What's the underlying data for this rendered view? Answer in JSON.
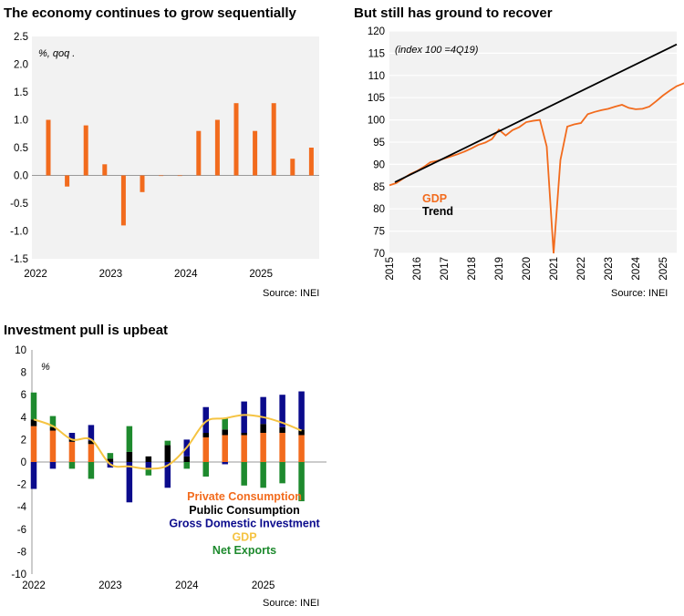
{
  "chart_data": [
    {
      "id": "qoq",
      "type": "bar",
      "title": "The economy continues to grow sequentially",
      "unit_note": "%, qoq .",
      "source": "Source: INEI",
      "color": "#F26B1D",
      "ylim": [
        -1.5,
        2.5
      ],
      "yticks": [
        "2.5",
        "2.0",
        "1.5",
        "1.0",
        "0.5",
        "0.0",
        "-0.5",
        "-1.0",
        "-1.5"
      ],
      "xlabels": [
        "2022",
        "2023",
        "2024",
        "2025"
      ],
      "categories": [
        "1Q22",
        "2Q22",
        "3Q22",
        "4Q22",
        "1Q23",
        "2Q23",
        "3Q23",
        "4Q23",
        "1Q24",
        "2Q24",
        "3Q24",
        "4Q24",
        "1Q25",
        "2Q25",
        "3Q25"
      ],
      "values": [
        1.0,
        -0.2,
        0.9,
        0.2,
        -0.9,
        -0.3,
        0.0,
        0.0,
        0.8,
        1.0,
        1.3,
        0.8,
        1.3,
        0.3,
        0.5
      ],
      "grid": false,
      "background": "#F2F2F2"
    },
    {
      "id": "index",
      "type": "line",
      "title": "But still has ground to recover",
      "unit_note": "(index 100 =4Q19)",
      "source": "Source: INEI",
      "ylim": [
        70,
        120
      ],
      "yticks": [
        "120",
        "115",
        "110",
        "105",
        "100",
        "95",
        "90",
        "85",
        "80",
        "75",
        "70"
      ],
      "xlabels": [
        "2015",
        "2016",
        "2017",
        "2018",
        "2019",
        "2020",
        "2021",
        "2022",
        "2023",
        "2024",
        "2025"
      ],
      "x_start": 2015.0,
      "x_end": 2025.5,
      "grid": true,
      "background": "#F2F2F2",
      "legend_position": "lower-left",
      "series": [
        {
          "name": "GDP",
          "color": "#F26B1D",
          "x_step": 0.25,
          "values": [
            85.3,
            85.8,
            86.8,
            87.8,
            88.5,
            89.4,
            90.5,
            90.8,
            91.3,
            91.8,
            92.3,
            92.9,
            93.6,
            94.4,
            94.9,
            95.7,
            97.8,
            96.5,
            97.7,
            98.4,
            99.5,
            99.8,
            100.0,
            94.0,
            70.0,
            91.0,
            98.5,
            99.0,
            99.3,
            101.3,
            101.8,
            102.2,
            102.5,
            103.0,
            103.4,
            102.7,
            102.4,
            102.5,
            103.0,
            104.2,
            105.5,
            106.6,
            107.6,
            108.2,
            108.6
          ]
        },
        {
          "name": "Trend",
          "color": "#000000",
          "x": [
            2015.2,
            2025.5
          ],
          "values": [
            86.0,
            117.0
          ]
        }
      ]
    },
    {
      "id": "contrib",
      "type": "bar",
      "stacked": true,
      "title": "Investment pull is upbeat",
      "unit_note": "%",
      "source": "Source: INEI",
      "ylim": [
        -10,
        10
      ],
      "yticks": [
        "10",
        "8",
        "6",
        "4",
        "2",
        "0",
        "-2",
        "-4",
        "-6",
        "-8",
        "-10"
      ],
      "xlabels": [
        "2022",
        "2023",
        "2024",
        "2025"
      ],
      "categories": [
        "1Q22",
        "2Q22",
        "3Q22",
        "4Q22",
        "1Q23",
        "2Q23",
        "3Q23",
        "4Q23",
        "1Q24",
        "2Q24",
        "3Q24",
        "4Q24",
        "1Q25",
        "2Q25",
        "3Q25"
      ],
      "legend_position": "bottom-right",
      "series": [
        {
          "name": "Private Consumption",
          "color": "#F26B1D",
          "values": [
            3.2,
            2.8,
            1.8,
            1.6,
            0.0,
            0.0,
            0.0,
            0.0,
            0.0,
            2.2,
            2.4,
            2.4,
            2.6,
            2.6,
            2.4
          ]
        },
        {
          "name": "Public Consumption",
          "color": "#000000",
          "values": [
            0.6,
            0.3,
            0.3,
            0.3,
            0.3,
            0.9,
            0.5,
            1.5,
            0.5,
            0.4,
            0.5,
            0.2,
            0.8,
            0.5,
            0.5
          ]
        },
        {
          "name": "Gross Domestic Investment",
          "color": "#0B0B8C",
          "values": [
            -2.4,
            -0.6,
            0.5,
            1.4,
            -0.5,
            -3.6,
            -0.6,
            -2.3,
            1.5,
            2.3,
            -0.2,
            2.8,
            2.4,
            2.9,
            3.4
          ]
        },
        {
          "name": "GDP",
          "color": "#F5C342",
          "values": [
            3.8,
            3.2,
            2.0,
            2.0,
            -0.2,
            -0.4,
            -0.6,
            -0.3,
            1.3,
            3.6,
            3.9,
            4.2,
            4.0,
            3.5,
            2.8
          ]
        },
        {
          "name": "Net Exports",
          "color": "#1E8A2E",
          "values": [
            2.4,
            1.0,
            -0.6,
            -1.5,
            0.5,
            2.3,
            -0.6,
            0.4,
            -0.6,
            -1.3,
            1.0,
            -2.1,
            -2.3,
            -1.9,
            -3.5
          ]
        }
      ]
    }
  ]
}
